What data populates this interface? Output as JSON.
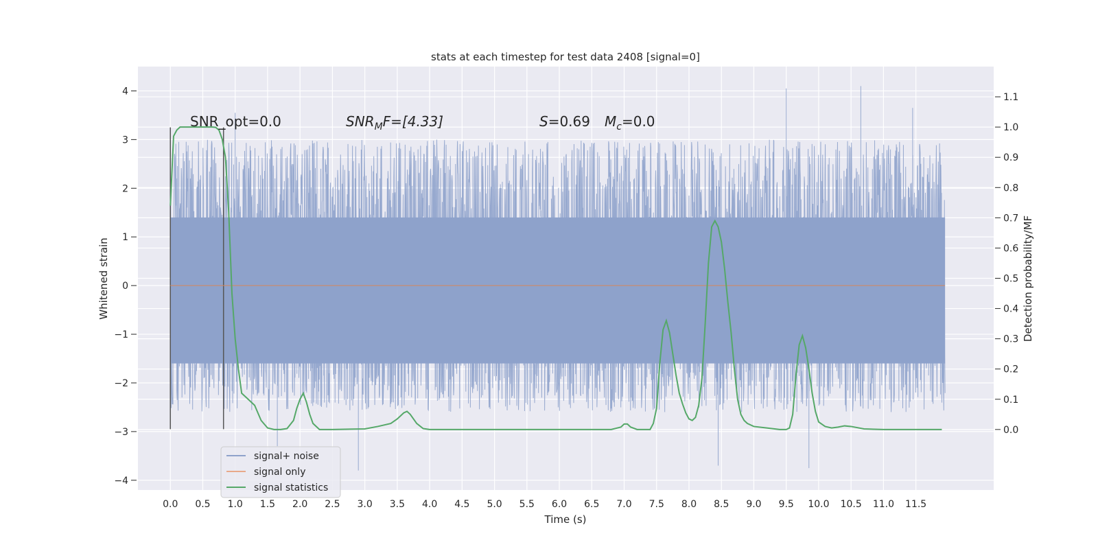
{
  "chart_data": {
    "type": "line",
    "title": "stats at each timestep for test data 2408 [signal=0]",
    "xlabel": "Time (s)",
    "ylabel": "Whitened strain",
    "ylabel_right": "Detection probability/MF",
    "xlim": [
      -0.5,
      12.7
    ],
    "ylim": [
      -4.2,
      4.5
    ],
    "ylim_right": [
      -0.2,
      1.2
    ],
    "x_ticks": [
      "0.0",
      "0.5",
      "1.0",
      "1.5",
      "2.0",
      "2.5",
      "3.0",
      "3.5",
      "4.0",
      "4.5",
      "5.0",
      "5.5",
      "6.0",
      "6.5",
      "7.0",
      "7.5",
      "8.0",
      "8.5",
      "9.0",
      "9.5",
      "10.0",
      "10.5",
      "11.0",
      "11.5"
    ],
    "y_ticks": [
      "4",
      "3",
      "2",
      "1",
      "0",
      "−1",
      "−2",
      "−3",
      "−4"
    ],
    "y_ticks_right": [
      "1.1",
      "1.0",
      "0.9",
      "0.8",
      "0.7",
      "0.6",
      "0.5",
      "0.4",
      "0.3",
      "0.2",
      "0.1",
      "0.0"
    ],
    "grid": true,
    "legend_position": "bottom-left",
    "annotations": {
      "snr_opt": "SNR_opt=0.0",
      "snr_mf_sym": "SNR",
      "snr_mf_sub": "M",
      "snr_mf_rest": "F=[4.33]",
      "s_sym": "S",
      "s_rest": "=0.69",
      "mc_sym": "M",
      "mc_sub": "c",
      "mc_rest": "=0.0"
    },
    "vertical_markers": [
      0.0,
      0.82
    ],
    "series": [
      {
        "name": "signal+ noise",
        "color": "#8ea2cb",
        "x_range": [
          0.0,
          11.95
        ],
        "envelope_core": [
          -1.6,
          1.4
        ],
        "typical_peak_range": [
          -2.6,
          3.0
        ],
        "extremes": [
          {
            "x": 1.0,
            "y": 3.55
          },
          {
            "x": 1.65,
            "y": -3.3
          },
          {
            "x": 2.9,
            "y": -3.8
          },
          {
            "x": 9.5,
            "y": 4.05
          },
          {
            "x": 9.85,
            "y": -3.75
          },
          {
            "x": 10.65,
            "y": 4.1
          },
          {
            "x": 11.45,
            "y": 3.65
          },
          {
            "x": 8.45,
            "y": -3.7
          }
        ]
      },
      {
        "name": "signal only",
        "color": "#dd8452",
        "x": [
          0.0,
          11.95
        ],
        "y": [
          0.0,
          0.0
        ]
      },
      {
        "name": "signal statistics",
        "color": "#55a868",
        "axis": "right",
        "x": [
          0.0,
          0.05,
          0.1,
          0.15,
          0.2,
          0.3,
          0.4,
          0.5,
          0.6,
          0.65,
          0.7,
          0.75,
          0.8,
          0.85,
          0.9,
          0.95,
          1.0,
          1.05,
          1.1,
          1.2,
          1.3,
          1.4,
          1.5,
          1.6,
          1.7,
          1.8,
          1.9,
          1.95,
          2.0,
          2.05,
          2.1,
          2.15,
          2.2,
          2.3,
          2.5,
          3.0,
          3.2,
          3.4,
          3.5,
          3.6,
          3.65,
          3.7,
          3.8,
          3.9,
          4.0,
          4.5,
          5.0,
          5.5,
          6.0,
          6.5,
          6.8,
          6.95,
          7.0,
          7.05,
          7.1,
          7.2,
          7.4,
          7.45,
          7.5,
          7.55,
          7.6,
          7.65,
          7.7,
          7.75,
          7.8,
          7.85,
          7.9,
          7.95,
          8.0,
          8.05,
          8.1,
          8.15,
          8.2,
          8.25,
          8.3,
          8.35,
          8.4,
          8.45,
          8.5,
          8.55,
          8.6,
          8.65,
          8.7,
          8.75,
          8.8,
          8.85,
          8.9,
          9.0,
          9.2,
          9.4,
          9.5,
          9.55,
          9.6,
          9.65,
          9.7,
          9.75,
          9.8,
          9.85,
          9.9,
          9.95,
          10.0,
          10.1,
          10.2,
          10.3,
          10.4,
          10.5,
          10.7,
          11.0,
          11.5,
          11.9
        ],
        "y": [
          0.74,
          0.97,
          0.99,
          1.0,
          1.0,
          1.0,
          1.0,
          1.0,
          1.0,
          1.0,
          0.999,
          0.99,
          0.96,
          0.9,
          0.72,
          0.45,
          0.3,
          0.2,
          0.12,
          0.1,
          0.08,
          0.03,
          0.005,
          0.0,
          0.0,
          0.003,
          0.03,
          0.07,
          0.1,
          0.12,
          0.09,
          0.05,
          0.02,
          0.0,
          0.0,
          0.002,
          0.01,
          0.02,
          0.035,
          0.055,
          0.06,
          0.05,
          0.02,
          0.003,
          0.0,
          0.0,
          0.0,
          0.0,
          0.0,
          0.0,
          0.0,
          0.008,
          0.018,
          0.018,
          0.008,
          0.0,
          0.0,
          0.02,
          0.07,
          0.22,
          0.33,
          0.36,
          0.32,
          0.25,
          0.18,
          0.12,
          0.085,
          0.055,
          0.035,
          0.03,
          0.04,
          0.08,
          0.17,
          0.35,
          0.55,
          0.67,
          0.69,
          0.67,
          0.62,
          0.53,
          0.42,
          0.32,
          0.2,
          0.1,
          0.05,
          0.03,
          0.02,
          0.01,
          0.005,
          0.0,
          0.0,
          0.005,
          0.05,
          0.18,
          0.28,
          0.31,
          0.27,
          0.2,
          0.12,
          0.06,
          0.025,
          0.01,
          0.005,
          0.008,
          0.012,
          0.01,
          0.002,
          0.0,
          0.0,
          0.0
        ]
      }
    ]
  }
}
